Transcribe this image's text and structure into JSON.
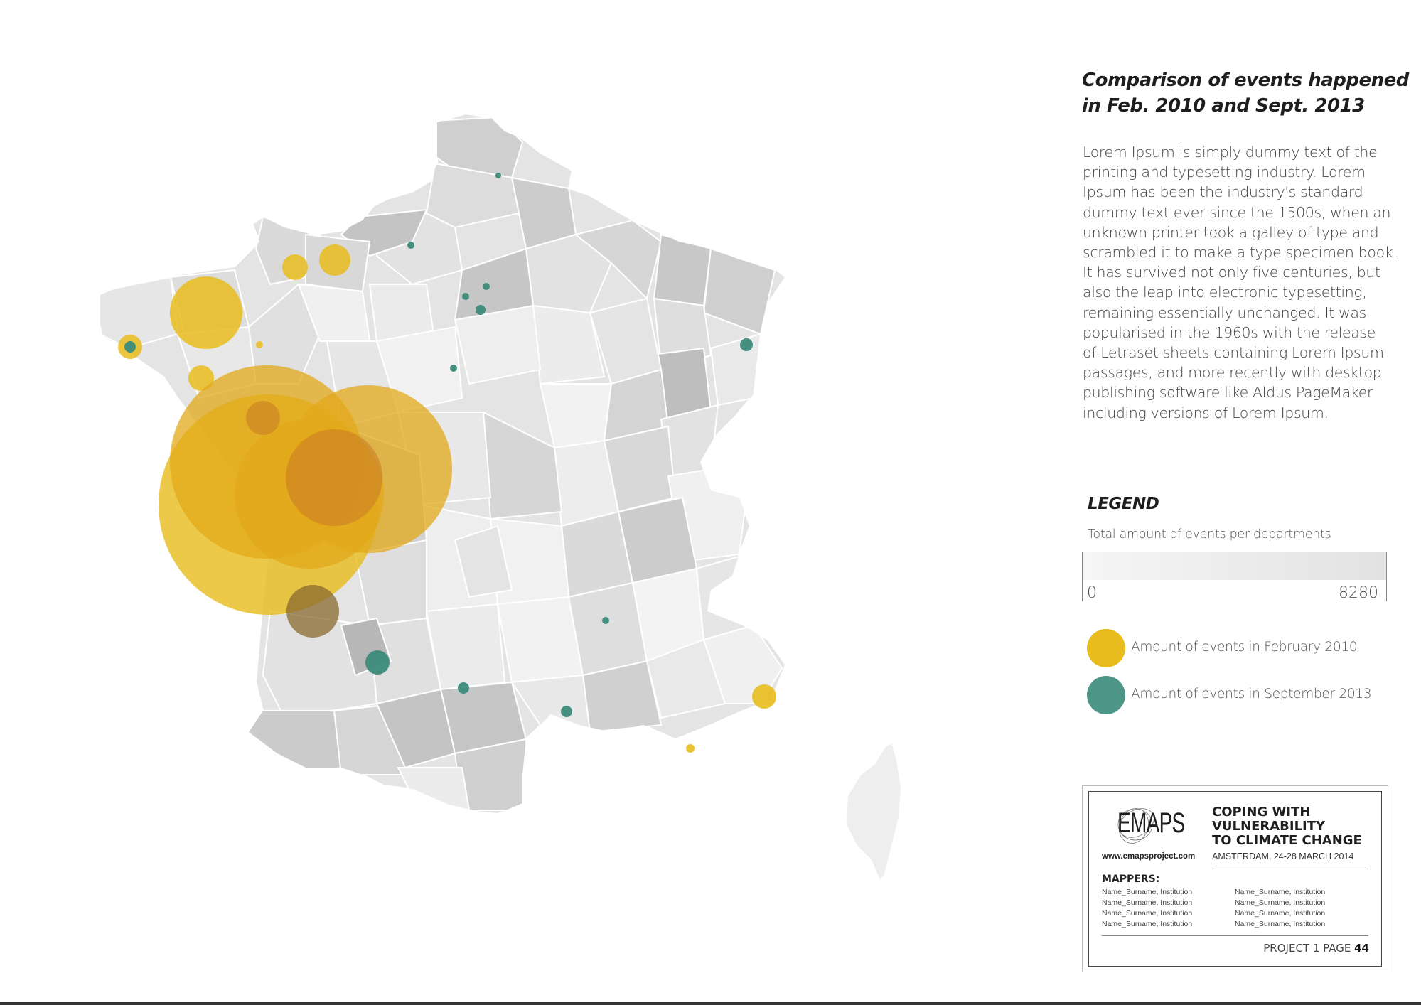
{
  "title_lines": [
    "Comparison of events happened",
    "in Feb. 2010 and Sept. 2013"
  ],
  "body_lines": [
    "Lorem Ipsum is simply dummy text of the",
    "printing and typesetting industry. Lorem",
    "Ipsum has been the industry's standard",
    "dummy text ever since the 1500s, when an",
    "unknown printer took a galley of type and",
    "scrambled it to make a type specimen book.",
    "It has survived not only five centuries, but",
    "also the leap into electronic typesetting,",
    "remaining essentially unchanged. It was",
    "popularised in the 1960s with the release",
    "of Letraset sheets containing Lorem Ipsum",
    "passages, and more recently with desktop",
    "publishing software like Aldus PageMaker",
    "including versions of Lorem Ipsum."
  ],
  "legend": {
    "title": "LEGEND",
    "subtitle": "Total amount of events per departments",
    "min": "0",
    "max": "8280",
    "feb_label": "Amount of events in February 2010",
    "sep_label": "Amount of events in September 2013",
    "feb_color": "#e8bc1c",
    "sep_color": "#3b8a7a"
  },
  "credit": {
    "logo": "EMAPS",
    "url": "www.emapsproject.com",
    "headline_lines": [
      "COPING WITH",
      "VULNERABILITY",
      "TO CLIMATE CHANGE"
    ],
    "event": "AMSTERDAM, 24-28 MARCH 2014",
    "mappers_label": "MAPPERS:",
    "mappers_left": [
      "Name_Surname, Institution",
      "Name_Surname, Institution",
      "Name_Surname, Institution",
      "Name_Surname, Institution"
    ],
    "mappers_right": [
      "Name_Surname, Institution",
      "Name_Surname, Institution",
      "Name_Surname, Institution",
      "Name_Surname, Institution"
    ],
    "page_prefix": "PROJECT 1 PAGE",
    "page_number": "44"
  }
}
